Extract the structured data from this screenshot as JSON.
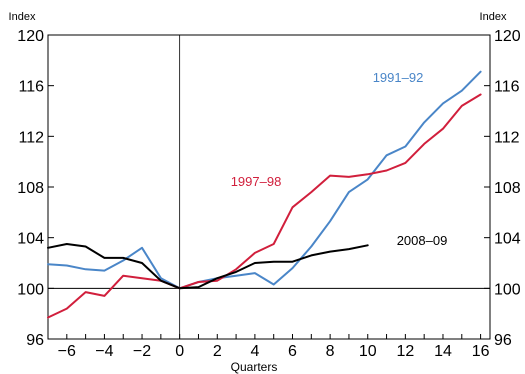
{
  "chart_data": {
    "type": "line",
    "xlabel": "Quarters",
    "ylabel_left": "Index",
    "ylabel_right": "Index",
    "xlim": [
      -7,
      16.5
    ],
    "ylim": [
      96,
      120
    ],
    "x_ticks": [
      "−6",
      "−4",
      "−2",
      "0",
      "2",
      "4",
      "6",
      "8",
      "10",
      "12",
      "14",
      "16"
    ],
    "x_tick_values": [
      -6,
      -4,
      -2,
      0,
      2,
      4,
      6,
      8,
      10,
      12,
      14,
      16
    ],
    "y_ticks": [
      "96",
      "100",
      "104",
      "108",
      "112",
      "116",
      "120"
    ],
    "y_tick_values": [
      96,
      100,
      104,
      108,
      112,
      116,
      120
    ],
    "reference_lines": {
      "horizontal_at": 100,
      "vertical_at": 0
    },
    "grid": false,
    "series": [
      {
        "name": "1991–92",
        "color": "#4a86c8",
        "x": [
          -7,
          -6,
          -5,
          -4,
          -3,
          -2,
          -1,
          0,
          1,
          2,
          3,
          4,
          5,
          6,
          7,
          8,
          9,
          10,
          11,
          12,
          13,
          14,
          15,
          16
        ],
        "values": [
          101.9,
          101.8,
          101.5,
          101.4,
          102.2,
          103.2,
          100.8,
          100.0,
          100.5,
          100.8,
          101.0,
          101.2,
          100.3,
          101.6,
          103.3,
          105.3,
          107.6,
          108.6,
          110.5,
          111.2,
          113.1,
          114.6,
          115.6,
          117.1
        ]
      },
      {
        "name": "1997–98",
        "color": "#d11f3c",
        "x": [
          -7,
          -6,
          -5,
          -4,
          -3,
          -2,
          -1,
          0,
          1,
          2,
          3,
          4,
          5,
          6,
          7,
          8,
          9,
          10,
          11,
          12,
          13,
          14,
          15,
          16
        ],
        "values": [
          97.7,
          98.4,
          99.7,
          99.4,
          101.0,
          100.8,
          100.6,
          100.0,
          100.5,
          100.6,
          101.5,
          102.8,
          103.5,
          106.4,
          107.6,
          108.9,
          108.8,
          109.0,
          109.3,
          109.9,
          111.4,
          112.6,
          114.4,
          115.3
        ]
      },
      {
        "name": "2008–09",
        "color": "#000000",
        "x": [
          -7,
          -6,
          -5,
          -4,
          -3,
          -2,
          -1,
          0,
          1,
          2,
          3,
          4,
          5,
          6,
          7,
          8,
          9,
          10
        ],
        "values": [
          103.2,
          103.5,
          103.3,
          102.4,
          102.4,
          102.0,
          100.6,
          100.0,
          100.1,
          100.8,
          101.3,
          102.0,
          102.1,
          102.1,
          102.6,
          102.9,
          103.1,
          103.4
        ]
      }
    ],
    "series_labels": [
      {
        "text": "1991–92",
        "color": "#4a86c8"
      },
      {
        "text": "1997–98",
        "color": "#d11f3c"
      },
      {
        "text": "2008–09",
        "color": "#000000"
      }
    ]
  }
}
